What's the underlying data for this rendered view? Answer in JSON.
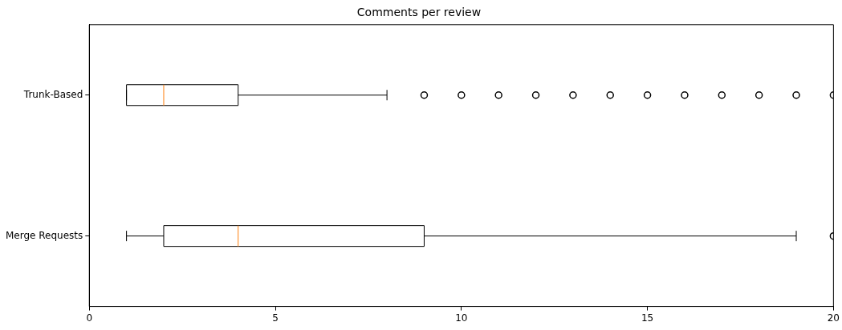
{
  "chart_data": {
    "type": "box",
    "title": "Comments per review",
    "orientation": "horizontal",
    "categories": [
      "Trunk-Based",
      "Merge Requests"
    ],
    "boxes": [
      {
        "low": 1,
        "q1": 1,
        "median": 2,
        "q3": 4,
        "high": 8,
        "outliers": [
          9,
          10,
          11,
          12,
          13,
          14,
          15,
          16,
          17,
          18,
          19,
          20
        ]
      },
      {
        "low": 1,
        "q1": 2,
        "median": 4,
        "q3": 9,
        "high": 19,
        "outliers": [
          20
        ]
      }
    ],
    "xlim": [
      0,
      20
    ],
    "xticks": [
      0,
      5,
      10,
      15,
      20
    ],
    "marker": "circle"
  }
}
